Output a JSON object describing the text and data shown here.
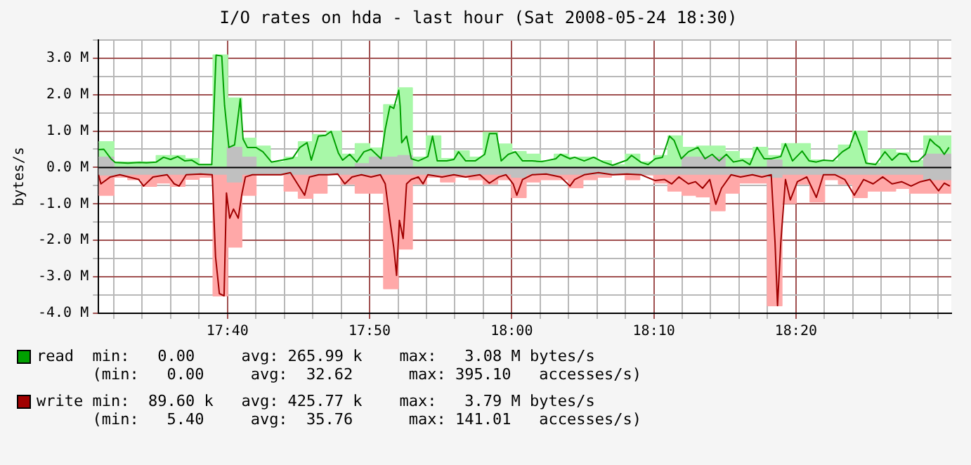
{
  "chart_data": {
    "type": "line",
    "title": "I/O rates on hda - last hour (Sat 2008-05-24 18:30)",
    "ylabel": "bytes/s",
    "xlim": [
      17.5155,
      18.5155
    ],
    "xticks": [
      {
        "value": 17.5333,
        "label": null
      },
      {
        "value": 17.5667,
        "label": null
      },
      {
        "value": 17.6,
        "label": null
      },
      {
        "value": 17.6333,
        "label": null
      },
      {
        "value": 17.6667,
        "label": "17:40"
      },
      {
        "value": 17.7,
        "label": null
      },
      {
        "value": 17.7333,
        "label": null
      },
      {
        "value": 17.7667,
        "label": null
      },
      {
        "value": 17.8,
        "label": null
      },
      {
        "value": 17.8333,
        "label": "17:50"
      },
      {
        "value": 17.8667,
        "label": null
      },
      {
        "value": 17.9,
        "label": null
      },
      {
        "value": 17.9333,
        "label": null
      },
      {
        "value": 17.9667,
        "label": null
      },
      {
        "value": 18,
        "label": "18:00"
      },
      {
        "value": 18.0333,
        "label": null
      },
      {
        "value": 18.0667,
        "label": null
      },
      {
        "value": 18.1,
        "label": null
      },
      {
        "value": 18.1333,
        "label": null
      },
      {
        "value": 18.1667,
        "label": "18:10"
      },
      {
        "value": 18.2,
        "label": null
      },
      {
        "value": 18.2333,
        "label": null
      },
      {
        "value": 18.2667,
        "label": null
      },
      {
        "value": 18.3,
        "label": null
      },
      {
        "value": 18.3333,
        "label": "18:20"
      },
      {
        "value": 18.3667,
        "label": null
      },
      {
        "value": 18.4,
        "label": null
      },
      {
        "value": 18.4333,
        "label": null
      },
      {
        "value": 18.4667,
        "label": null
      },
      {
        "value": 18.5,
        "label": null
      }
    ],
    "ylim": [
      -4,
      3.5
    ],
    "yticks": [
      {
        "value": -4,
        "label": "-4.0 M"
      },
      {
        "value": -3.5,
        "label": null
      },
      {
        "value": -3,
        "label": "-3.0 M"
      },
      {
        "value": -2.5,
        "label": null
      },
      {
        "value": -2,
        "label": "-2.0 M"
      },
      {
        "value": -1.5,
        "label": null
      },
      {
        "value": -1,
        "label": "-1.0 M"
      },
      {
        "value": -0.5,
        "label": null
      },
      {
        "value": 0,
        "label": "0.0 M"
      },
      {
        "value": 0.5,
        "label": null
      },
      {
        "value": 1,
        "label": "1.0 M"
      },
      {
        "value": 1.5,
        "label": null
      },
      {
        "value": 2,
        "label": "2.0 M"
      },
      {
        "value": 2.5,
        "label": null
      },
      {
        "value": 3,
        "label": "3.0 M"
      },
      {
        "value": 3.5,
        "label": null
      }
    ],
    "grid": true,
    "legend": "bottom",
    "ref_lines": [
      {
        "axis": "y",
        "value": 0,
        "color": "#000000"
      }
    ],
    "annotations": [
      "min:   0.00     avg: 265.99 k    max:   3.08 M bytes/s",
      "(min:   0.00     avg:  32.62      max: 395.10   accesses/s)",
      "min:  89.60 k   avg: 425.77 k    max:   3.79 M bytes/s",
      "(min:   5.40     avg:  35.76      max: 141.01   accesses/s)"
    ],
    "x": [
      17.5155,
      17.5333,
      17.5333,
      17.55,
      17.55,
      17.5667,
      17.5667,
      17.5833,
      17.5833,
      17.6,
      17.6,
      17.6167,
      17.6167,
      17.6333,
      17.6333,
      17.65,
      17.65,
      17.6667,
      17.6667,
      17.6833,
      17.6833,
      17.7,
      17.7,
      17.7167,
      17.7167,
      17.7333,
      17.7333,
      17.75,
      17.75,
      17.7667,
      17.7667,
      17.7833,
      17.7833,
      17.8,
      17.8,
      17.8167,
      17.8167,
      17.8333,
      17.8333,
      17.85,
      17.85,
      17.8667,
      17.8667,
      17.8833,
      17.8833,
      17.9,
      17.9,
      17.9167,
      17.9167,
      17.9333,
      17.9333,
      17.95,
      17.95,
      17.9667,
      17.9667,
      17.9833,
      17.9833,
      18,
      18,
      18.0167,
      18.0167,
      18.0333,
      18.0333,
      18.05,
      18.05,
      18.0667,
      18.0667,
      18.0833,
      18.0833,
      18.1,
      18.1,
      18.1167,
      18.1167,
      18.1333,
      18.1333,
      18.15,
      18.15,
      18.1667,
      18.1667,
      18.1833,
      18.1833,
      18.2,
      18.2,
      18.2167,
      18.2167,
      18.2333,
      18.2333,
      18.25,
      18.25,
      18.2667,
      18.2667,
      18.2833,
      18.2833,
      18.3,
      18.3,
      18.3167,
      18.3167,
      18.3333,
      18.3333,
      18.35,
      18.35,
      18.3667,
      18.3667,
      18.3833,
      18.3833,
      18.4,
      18.4,
      18.4167,
      18.4167,
      18.4333,
      18.4333,
      18.45,
      18.45,
      18.4667,
      18.4667,
      18.4833,
      18.4833,
      18.5,
      18.5,
      18.5155
    ],
    "series": [
      {
        "type": "area",
        "color": "#a8f8a8",
        "values": [
          0.7,
          0.7,
          0.15,
          0.15,
          0.15,
          0.15,
          0.15,
          0.15,
          0.32,
          0.32,
          0.32,
          0.32,
          0.24,
          0.24,
          0.08,
          0.08,
          3.08,
          3.08,
          1.9,
          1.9,
          0.8,
          0.8,
          0.58,
          0.58,
          0.15,
          0.15,
          0.28,
          0.28,
          0.7,
          0.7,
          0.9,
          0.9,
          0.99,
          0.99,
          0.36,
          0.36,
          0.65,
          0.65,
          0.53,
          0.53,
          1.72,
          1.72,
          2.18,
          2.18,
          0.28,
          0.28,
          0.86,
          0.86,
          0.24,
          0.24,
          0.45,
          0.45,
          0.28,
          0.28,
          0.96,
          0.96,
          0.64,
          0.64,
          0.43,
          0.43,
          0.36,
          0.36,
          0.18,
          0.18,
          0.36,
          0.36,
          0.28,
          0.28,
          0.28,
          0.28,
          0.18,
          0.18,
          0.07,
          0.07,
          0.36,
          0.36,
          0.15,
          0.15,
          0.32,
          0.32,
          0.86,
          0.86,
          0.55,
          0.55,
          0.58,
          0.58,
          0.58,
          0.58,
          0.43,
          0.43,
          0.24,
          0.24,
          0.55,
          0.55,
          0.32,
          0.32,
          0.65,
          0.65,
          0.65,
          0.65,
          0.2,
          0.2,
          0.18,
          0.18,
          0.61,
          0.61,
          0.99,
          0.99,
          0.11,
          0.11,
          0.49,
          0.49,
          0.4,
          0.4,
          0.18,
          0.18,
          0.86,
          0.86,
          0.86,
          0.86
        ]
      },
      {
        "type": "area",
        "color": "#ffa8a8",
        "values": [
          -0.76,
          -0.76,
          -0.26,
          -0.26,
          -0.33,
          -0.33,
          -0.51,
          -0.51,
          -0.42,
          -0.42,
          -0.51,
          -0.51,
          -0.32,
          -0.32,
          -0.26,
          -0.26,
          -3.52,
          -3.52,
          -2.18,
          -2.18,
          -0.76,
          -0.76,
          -0.2,
          -0.2,
          -0.2,
          -0.2,
          -0.64,
          -0.64,
          -0.84,
          -0.84,
          -0.7,
          -0.7,
          -0.2,
          -0.2,
          -0.45,
          -0.45,
          -0.7,
          -0.7,
          -0.7,
          -0.7,
          -3.32,
          -3.32,
          -2.23,
          -2.23,
          -0.45,
          -0.45,
          -0.26,
          -0.26,
          -0.39,
          -0.39,
          -0.26,
          -0.26,
          -0.33,
          -0.33,
          -0.45,
          -0.45,
          -0.33,
          -0.33,
          -0.82,
          -0.82,
          -0.39,
          -0.39,
          -0.33,
          -0.33,
          -0.33,
          -0.33,
          -0.55,
          -0.55,
          -0.33,
          -0.33,
          -0.26,
          -0.26,
          -0.2,
          -0.2,
          -0.33,
          -0.33,
          -0.2,
          -0.2,
          -0.42,
          -0.42,
          -0.64,
          -0.64,
          -0.76,
          -0.76,
          -0.8,
          -0.8,
          -1.18,
          -1.18,
          -0.7,
          -0.7,
          -0.42,
          -0.42,
          -0.42,
          -0.42,
          -3.79,
          -3.79,
          -0.98,
          -0.98,
          -0.45,
          -0.45,
          -0.94,
          -0.94,
          -0.33,
          -0.33,
          -0.45,
          -0.45,
          -0.82,
          -0.82,
          -0.64,
          -0.64,
          -0.64,
          -0.64,
          -0.57,
          -0.57,
          -0.7,
          -0.7,
          -0.7,
          -0.7,
          -0.7,
          -0.7
        ]
      },
      {
        "type": "area",
        "color": "#c0c0c0",
        "values": [
          0.28,
          0.28,
          0,
          0,
          0,
          0,
          0,
          0,
          0,
          0,
          0,
          0,
          0,
          0,
          0,
          0,
          0,
          0,
          0.55,
          0.55,
          0.28,
          0.28,
          0,
          0,
          0,
          0,
          0,
          0,
          0,
          0,
          0,
          0,
          0,
          0,
          0,
          0,
          0.1,
          0.1,
          0.28,
          0.28,
          0.28,
          0.28,
          0.32,
          0.32,
          0,
          0,
          0,
          0,
          0,
          0,
          0,
          0,
          0,
          0,
          0,
          0,
          0,
          0,
          0,
          0,
          0,
          0,
          0,
          0,
          0,
          0,
          0,
          0,
          0,
          0,
          0,
          0,
          0,
          0,
          0,
          0,
          0,
          0,
          0,
          0,
          0,
          0,
          0.28,
          0.28,
          0.28,
          0.28,
          0.28,
          0.28,
          0,
          0,
          0,
          0,
          0,
          0,
          0.2,
          0.2,
          0,
          0,
          0,
          0,
          0,
          0,
          0,
          0,
          0,
          0,
          0,
          0,
          0,
          0,
          0,
          0,
          0,
          0,
          0,
          0,
          0.36,
          0.36,
          0.36,
          0.36
        ]
      },
      {
        "type": "area",
        "color": "#c0c0c0",
        "values": [
          -0.2,
          -0.2,
          -0.18,
          -0.18,
          -0.18,
          -0.18,
          -0.18,
          -0.18,
          -0.18,
          -0.18,
          -0.18,
          -0.18,
          -0.18,
          -0.18,
          -0.18,
          -0.18,
          -0.18,
          -0.18,
          -0.39,
          -0.39,
          -0.18,
          -0.18,
          -0.18,
          -0.18,
          -0.18,
          -0.18,
          -0.18,
          -0.18,
          -0.18,
          -0.18,
          -0.18,
          -0.18,
          -0.18,
          -0.18,
          -0.18,
          -0.18,
          -0.18,
          -0.18,
          -0.18,
          -0.18,
          -0.18,
          -0.18,
          -0.18,
          -0.18,
          -0.18,
          -0.18,
          -0.18,
          -0.18,
          -0.18,
          -0.18,
          -0.18,
          -0.18,
          -0.18,
          -0.18,
          -0.18,
          -0.18,
          -0.18,
          -0.18,
          -0.26,
          -0.26,
          -0.18,
          -0.18,
          -0.18,
          -0.18,
          -0.18,
          -0.18,
          -0.18,
          -0.18,
          -0.18,
          -0.18,
          -0.18,
          -0.18,
          -0.18,
          -0.18,
          -0.18,
          -0.18,
          -0.18,
          -0.18,
          -0.18,
          -0.18,
          -0.18,
          -0.18,
          -0.18,
          -0.18,
          -0.18,
          -0.18,
          -0.18,
          -0.18,
          -0.18,
          -0.18,
          -0.18,
          -0.18,
          -0.18,
          -0.18,
          -0.26,
          -0.26,
          -0.18,
          -0.18,
          -0.18,
          -0.18,
          -0.18,
          -0.18,
          -0.18,
          -0.18,
          -0.18,
          -0.18,
          -0.18,
          -0.18,
          -0.18,
          -0.18,
          -0.18,
          -0.18,
          -0.18,
          -0.18,
          -0.18,
          -0.18,
          -0.33,
          -0.33,
          -0.33,
          -0.33
        ]
      },
      {
        "name": "read",
        "color": "#00a000",
        "x": [
          17.5155,
          17.5217,
          17.53,
          17.535,
          17.55,
          17.5633,
          17.5717,
          17.5833,
          17.5917,
          17.6,
          17.6083,
          17.6167,
          17.625,
          17.6333,
          17.6483,
          17.6533,
          17.66,
          17.6633,
          17.6683,
          17.675,
          17.6817,
          17.685,
          17.69,
          17.7,
          17.7083,
          17.7183,
          17.735,
          17.7433,
          17.7517,
          17.76,
          17.765,
          17.7733,
          17.7817,
          17.7883,
          17.7967,
          17.8017,
          17.81,
          17.8183,
          17.8267,
          17.835,
          17.8467,
          17.8517,
          17.8572,
          17.8617,
          17.8675,
          17.8692,
          17.871,
          17.8767,
          17.8822,
          17.8905,
          17.9017,
          17.9072,
          17.9127,
          17.9238,
          17.9322,
          17.9377,
          17.946,
          17.9572,
          17.9683,
          17.9738,
          17.9822,
          17.9877,
          17.996,
          18.0043,
          18.0127,
          18.0238,
          18.035,
          18.0517,
          18.0572,
          18.0683,
          18.0738,
          18.085,
          18.096,
          18.1072,
          18.1183,
          18.135,
          18.1405,
          18.1517,
          18.16,
          18.1683,
          18.1767,
          18.185,
          18.1905,
          18.1988,
          18.2072,
          18.2183,
          18.2267,
          18.235,
          18.2433,
          18.2517,
          18.26,
          18.271,
          18.2793,
          18.2877,
          18.296,
          18.3043,
          18.3155,
          18.321,
          18.3293,
          18.3405,
          18.3488,
          18.3572,
          18.3655,
          18.3767,
          18.3877,
          18.396,
          18.4027,
          18.41,
          18.4155,
          18.4267,
          18.4377,
          18.446,
          18.4543,
          18.4627,
          18.4683,
          18.4767,
          18.485,
          18.4905,
          18.496,
          18.5017,
          18.5072,
          18.5127
        ],
        "values": [
          0.49,
          0.5,
          0.24,
          0.14,
          0.12,
          0.14,
          0.13,
          0.15,
          0.28,
          0.22,
          0.3,
          0.18,
          0.2,
          0.08,
          0.08,
          3.08,
          3.06,
          1.7,
          0.55,
          0.62,
          1.88,
          0.78,
          0.55,
          0.55,
          0.43,
          0.15,
          0.22,
          0.26,
          0.55,
          0.68,
          0.2,
          0.86,
          0.88,
          0.99,
          0.4,
          0.2,
          0.36,
          0.15,
          0.43,
          0.5,
          0.24,
          1.05,
          1.68,
          1.62,
          2.12,
          1.68,
          0.68,
          0.86,
          0.24,
          0.18,
          0.3,
          0.86,
          0.18,
          0.18,
          0.22,
          0.43,
          0.18,
          0.18,
          0.36,
          0.93,
          0.93,
          0.18,
          0.36,
          0.43,
          0.18,
          0.18,
          0.16,
          0.24,
          0.36,
          0.24,
          0.28,
          0.18,
          0.28,
          0.15,
          0.06,
          0.2,
          0.33,
          0.14,
          0.08,
          0.24,
          0.28,
          0.86,
          0.74,
          0.24,
          0.43,
          0.55,
          0.24,
          0.36,
          0.18,
          0.36,
          0.15,
          0.2,
          0.08,
          0.55,
          0.24,
          0.24,
          0.3,
          0.65,
          0.18,
          0.45,
          0.18,
          0.15,
          0.2,
          0.18,
          0.43,
          0.55,
          0.99,
          0.55,
          0.12,
          0.08,
          0.43,
          0.2,
          0.38,
          0.36,
          0.16,
          0.17,
          0.36,
          0.78,
          0.65,
          0.55,
          0.36,
          0.55
        ]
      },
      {
        "name": "write",
        "color": "#a00000",
        "x": [
          17.5155,
          17.5183,
          17.5293,
          17.5405,
          17.5627,
          17.5683,
          17.5793,
          17.596,
          17.6043,
          17.61,
          17.6183,
          17.635,
          17.6488,
          17.6527,
          17.6572,
          17.6627,
          17.6655,
          17.6693,
          17.6738,
          17.6793,
          17.6838,
          17.6877,
          17.696,
          17.7072,
          17.7183,
          17.7293,
          17.7405,
          17.7488,
          17.7572,
          17.7627,
          17.7738,
          17.785,
          17.796,
          17.8043,
          17.8127,
          17.8238,
          17.835,
          17.846,
          17.8517,
          17.8572,
          17.8617,
          17.865,
          17.8683,
          17.8727,
          17.8767,
          17.8822,
          17.8905,
          17.896,
          17.9017,
          17.9183,
          17.9322,
          17.946,
          17.9627,
          17.9738,
          17.985,
          17.9933,
          18.0017,
          18.006,
          18.0127,
          18.0238,
          18.0405,
          18.0572,
          18.0683,
          18.0738,
          18.085,
          18.1017,
          18.1183,
          18.135,
          18.1517,
          18.1683,
          18.1793,
          18.1877,
          18.196,
          18.2072,
          18.2155,
          18.2238,
          18.2322,
          18.2393,
          18.246,
          18.2572,
          18.2683,
          18.2822,
          18.2933,
          18.3043,
          18.3088,
          18.3117,
          18.3155,
          18.321,
          18.3267,
          18.335,
          18.346,
          18.3572,
          18.3655,
          18.3793,
          18.3905,
          18.4017,
          18.4127,
          18.4238,
          18.435,
          18.446,
          18.4572,
          18.4683,
          18.4793,
          18.4905,
          18.5005,
          18.5072,
          18.5138
        ],
        "values": [
          -0.2,
          -0.45,
          -0.26,
          -0.2,
          -0.33,
          -0.51,
          -0.26,
          -0.2,
          -0.45,
          -0.51,
          -0.2,
          -0.18,
          -0.2,
          -2.45,
          -3.46,
          -3.52,
          -0.7,
          -1.39,
          -1.14,
          -1.39,
          -0.7,
          -0.26,
          -0.2,
          -0.2,
          -0.2,
          -0.2,
          -0.14,
          -0.45,
          -0.76,
          -0.26,
          -0.2,
          -0.2,
          -0.18,
          -0.45,
          -0.26,
          -0.2,
          -0.26,
          -0.2,
          -0.45,
          -1.45,
          -2.2,
          -2.96,
          -1.45,
          -1.95,
          -0.45,
          -0.33,
          -0.26,
          -0.45,
          -0.2,
          -0.26,
          -0.2,
          -0.26,
          -0.2,
          -0.43,
          -0.26,
          -0.2,
          -0.45,
          -0.76,
          -0.33,
          -0.2,
          -0.18,
          -0.26,
          -0.51,
          -0.33,
          -0.2,
          -0.14,
          -0.2,
          -0.18,
          -0.2,
          -0.36,
          -0.33,
          -0.45,
          -0.26,
          -0.45,
          -0.39,
          -0.57,
          -0.33,
          -1.01,
          -0.57,
          -0.2,
          -0.26,
          -0.2,
          -0.26,
          -0.2,
          -2.07,
          -3.79,
          -2.07,
          -0.33,
          -0.89,
          -0.39,
          -0.26,
          -0.82,
          -0.2,
          -0.2,
          -0.33,
          -0.76,
          -0.33,
          -0.45,
          -0.26,
          -0.45,
          -0.39,
          -0.51,
          -0.39,
          -0.33,
          -0.64,
          -0.43,
          -0.51
        ]
      }
    ]
  }
}
